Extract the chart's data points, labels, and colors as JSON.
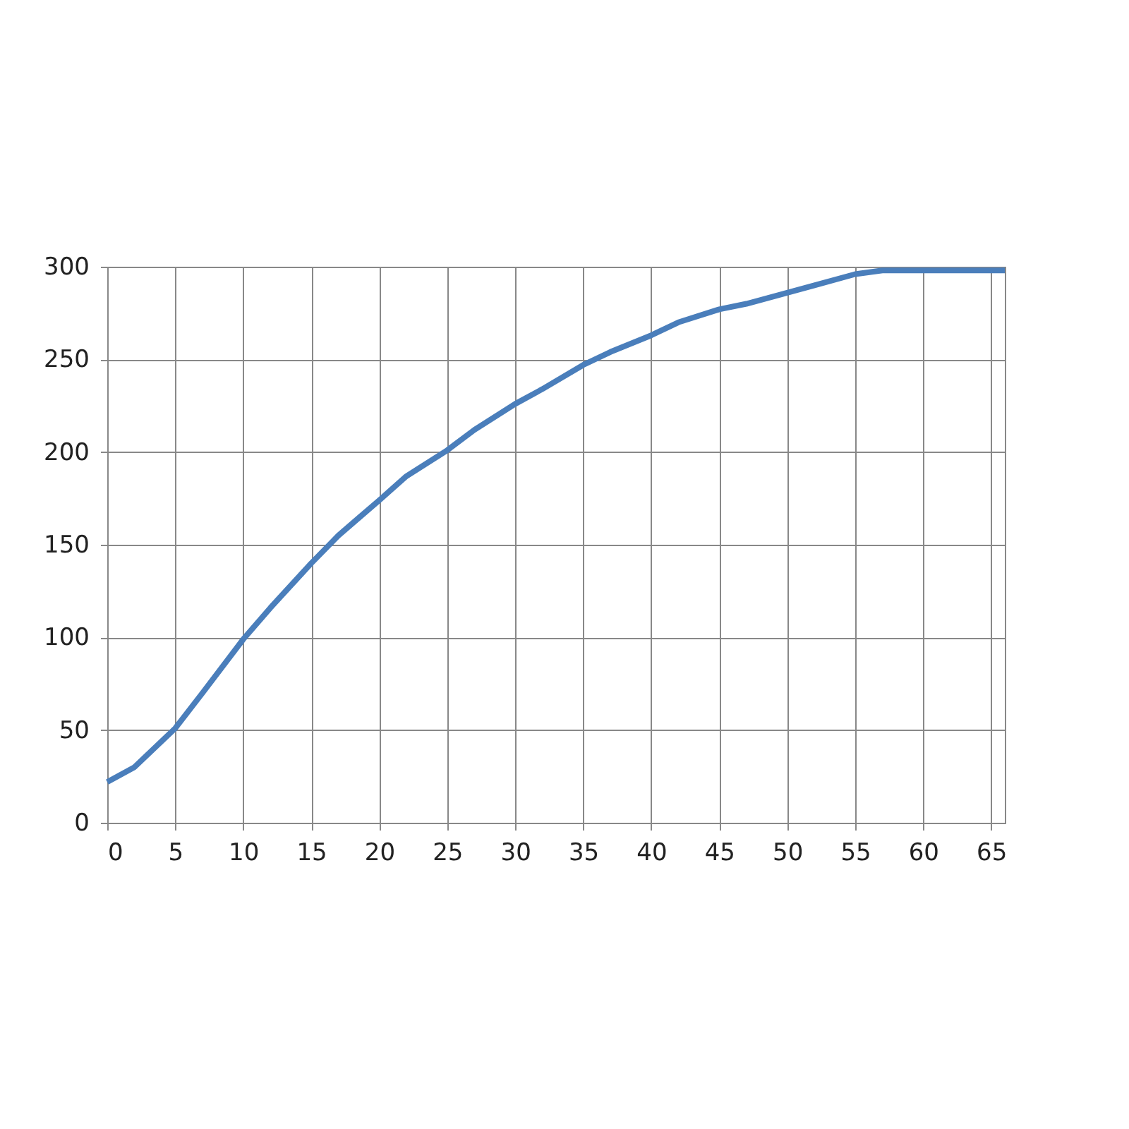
{
  "chart_data": {
    "type": "line",
    "x": [
      0,
      2,
      5,
      7,
      10,
      12,
      15,
      17,
      20,
      22,
      25,
      27,
      30,
      32,
      35,
      37,
      40,
      42,
      45,
      47,
      50,
      52,
      55,
      57,
      60,
      66
    ],
    "series": [
      {
        "color": "#4a7ebb",
        "values": [
          22,
          30,
          51,
          70,
          99,
          116,
          140,
          155,
          174,
          187,
          201,
          212,
          226,
          234,
          247,
          254,
          263,
          270,
          277,
          280,
          286,
          290,
          296,
          298,
          298,
          298
        ]
      }
    ],
    "xlim": [
      0,
      66
    ],
    "xticks": [
      0,
      5,
      10,
      15,
      20,
      25,
      30,
      35,
      40,
      45,
      50,
      55,
      60,
      65
    ],
    "ylim": [
      0,
      300
    ],
    "yticks": [
      0,
      50,
      100,
      150,
      200,
      250,
      300
    ],
    "grid": true,
    "legend": false,
    "marker": "none",
    "line_style": "solid"
  }
}
